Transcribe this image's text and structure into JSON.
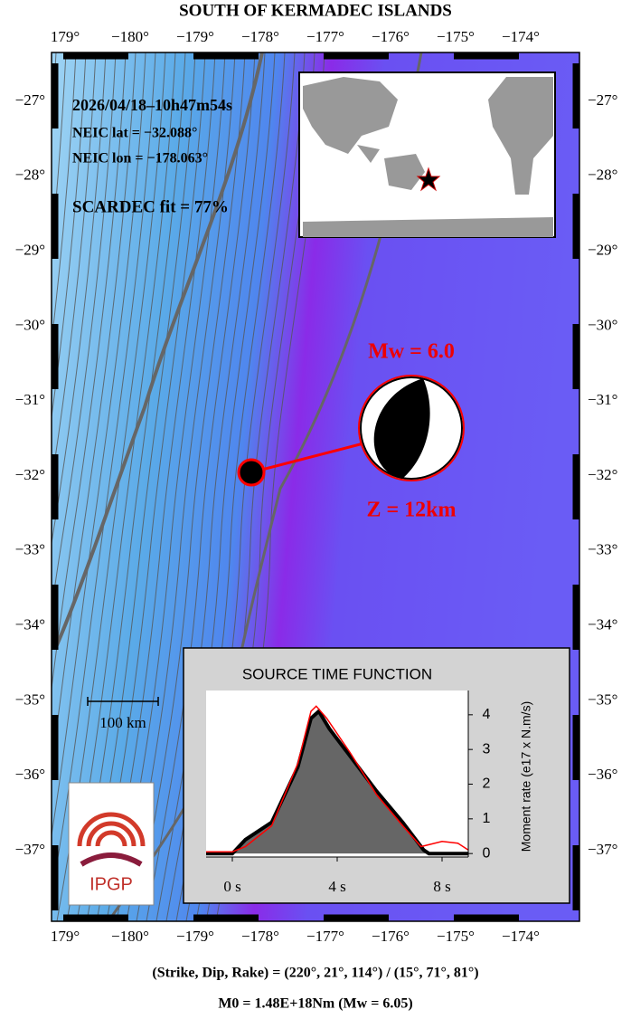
{
  "map": {
    "title": "SOUTH OF KERMADEC ISLANDS",
    "lon_labels": [
      "179°",
      "−180°",
      "−179°",
      "−178°",
      "−177°",
      "−176°",
      "−175°",
      "−174°"
    ],
    "lat_labels": [
      "−27°",
      "−28°",
      "−29°",
      "−30°",
      "−31°",
      "−32°",
      "−33°",
      "−34°",
      "−35°",
      "−36°",
      "−37°"
    ],
    "info": {
      "date": "2026/04/18–10h47m54s",
      "lat": "NEIC lat  = −32.088°",
      "lon": "NEIC lon = −178.063°",
      "fit": "SCARDEC fit = 77%"
    },
    "magnitude": "Mw = 6.0",
    "depth": "Z =  12km",
    "scale": "100 km",
    "logo": "IPGP",
    "mechanism": "(Strike, Dip, Rake) = (220°, 21°, 114°) / (15°, 71°, 81°)",
    "moment": "M0 = 1.48E+18Nm  (Mw = 6.05)"
  },
  "chart_data": {
    "type": "line",
    "title": "SOURCE TIME FUNCTION",
    "y_label": "Moment rate (e17 x N.m/s)",
    "xlim": [
      -1,
      9
    ],
    "ylim": [
      -0.1,
      4.7
    ],
    "xticks": [
      {
        "value": 0,
        "label": "0 s"
      },
      {
        "value": 4,
        "label": "4 s"
      },
      {
        "value": 8,
        "label": "8 s"
      }
    ],
    "yticks": [
      0,
      1,
      2,
      3,
      4
    ],
    "series": [
      {
        "color": "#000000",
        "x": [
          -1,
          0,
          0.5,
          1.5,
          2.5,
          3,
          3.3,
          3.7,
          4.5,
          5.5,
          6.5,
          7.3,
          7.5,
          9
        ],
        "values": [
          0,
          0,
          0.4,
          0.9,
          2.5,
          3.9,
          4.1,
          3.6,
          2.8,
          1.8,
          0.9,
          0.1,
          0,
          0
        ]
      },
      {
        "color": "#ff0000",
        "x": [
          -1,
          0,
          0.5,
          1.5,
          2.5,
          3,
          3.2,
          3.6,
          4.5,
          5.5,
          6.5,
          7.2,
          8,
          8.6,
          9
        ],
        "values": [
          0.05,
          0.05,
          0.2,
          0.8,
          2.6,
          4.1,
          4.25,
          3.9,
          2.9,
          1.7,
          0.8,
          0.2,
          0.35,
          0.3,
          0.1
        ]
      }
    ]
  }
}
